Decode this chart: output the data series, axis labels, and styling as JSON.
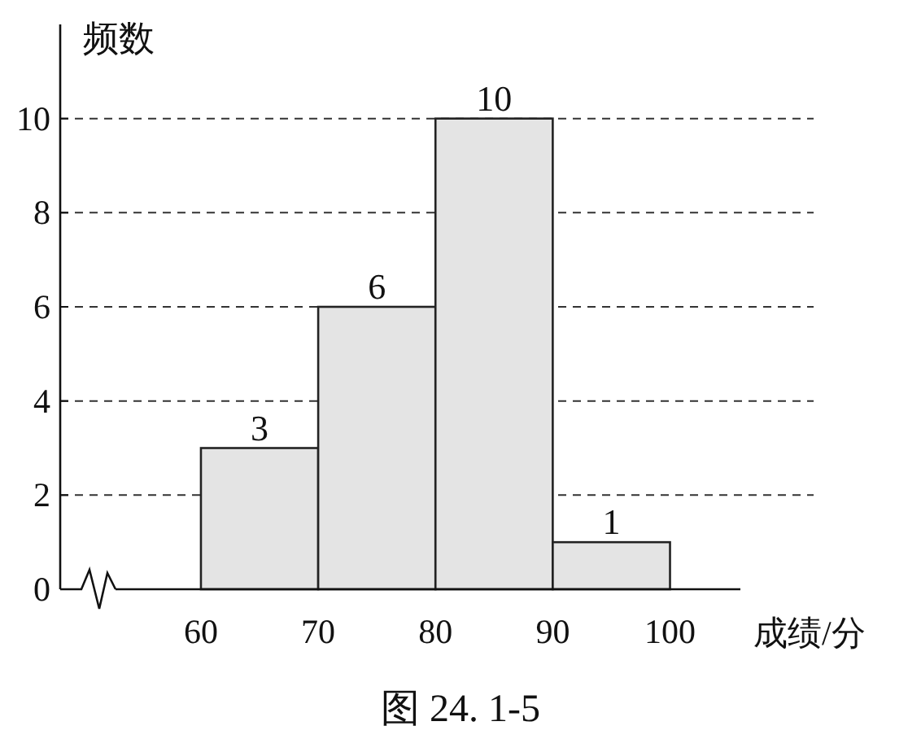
{
  "chart_data": {
    "type": "histogram",
    "ylabel": "频数",
    "xlabel": "成绩/分",
    "annotations": [
      "图 24. 1-5"
    ],
    "bins": [
      60,
      70,
      80,
      90,
      100
    ],
    "values": [
      3,
      6,
      10,
      1
    ],
    "color": "#e4e4e4",
    "xlim": [
      48,
      106
    ],
    "xticks": [
      60,
      70,
      80,
      90,
      100
    ],
    "ylim": [
      0,
      12
    ],
    "yticks": [
      0,
      2,
      4,
      6,
      8,
      10
    ],
    "grid": "y",
    "data_labels": true
  }
}
